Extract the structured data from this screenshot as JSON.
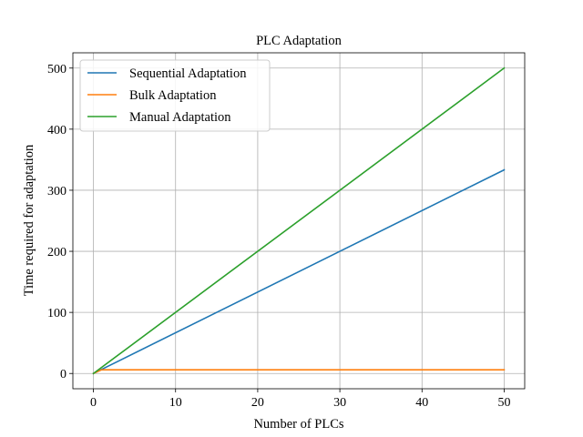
{
  "chart_data": {
    "type": "line",
    "title": "PLC Adaptation",
    "xlabel": "Number of PLCs",
    "ylabel": "Time required for adaptation",
    "xlim": [
      -2.5,
      52.5
    ],
    "ylim": [
      -25,
      525
    ],
    "xticks": [
      0,
      10,
      20,
      30,
      40,
      50
    ],
    "yticks": [
      0,
      100,
      200,
      300,
      400,
      500
    ],
    "grid": true,
    "legend_position": "top-left",
    "series": [
      {
        "name": "Sequential Adaptation",
        "color": "#1f77b4",
        "x": [
          0,
          50
        ],
        "y": [
          0,
          333.3
        ]
      },
      {
        "name": "Bulk Adaptation",
        "color": "#ff7f0e",
        "x": [
          0,
          1,
          50
        ],
        "y": [
          0,
          6,
          6
        ]
      },
      {
        "name": "Manual Adaptation",
        "color": "#2ca02c",
        "x": [
          0,
          50
        ],
        "y": [
          0,
          500
        ]
      }
    ]
  }
}
